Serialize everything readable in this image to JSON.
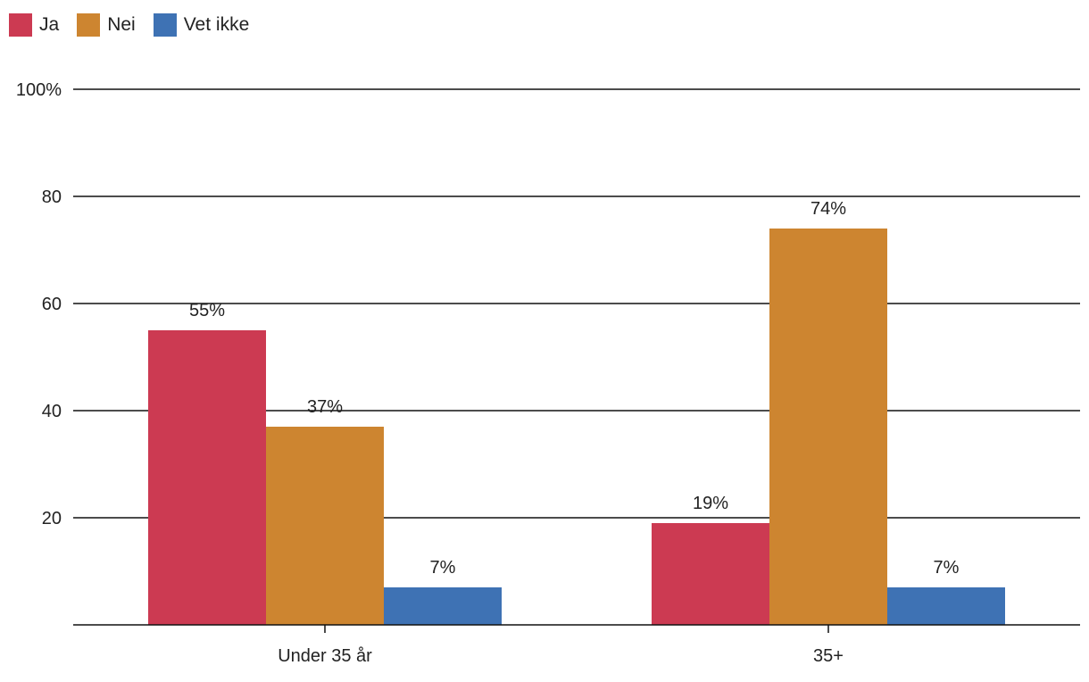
{
  "chart_data": {
    "type": "bar",
    "categories": [
      "Under 35 år",
      "35+"
    ],
    "series": [
      {
        "name": "Ja",
        "color": "#cc3a52",
        "values": [
          55,
          19
        ],
        "labels": [
          "55%",
          "19%"
        ]
      },
      {
        "name": "Nei",
        "color": "#cd8530",
        "values": [
          37,
          74
        ],
        "labels": [
          "37%",
          "74%"
        ]
      },
      {
        "name": "Vet ikke",
        "color": "#3e72b4",
        "values": [
          7,
          7
        ],
        "labels": [
          "7%",
          "7%"
        ]
      }
    ],
    "yticks": [
      {
        "value": 20,
        "label": "20"
      },
      {
        "value": 40,
        "label": "40"
      },
      {
        "value": 60,
        "label": "60"
      },
      {
        "value": 80,
        "label": "80"
      },
      {
        "value": 100,
        "label": "100%"
      }
    ],
    "ylim": [
      0,
      100
    ],
    "grid": true,
    "legend_position": "top-left",
    "title": "",
    "xlabel": "",
    "ylabel": ""
  }
}
